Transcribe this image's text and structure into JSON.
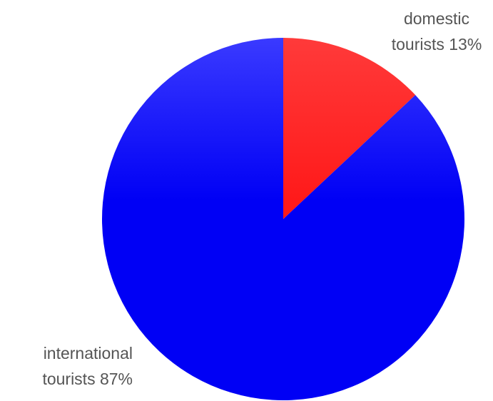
{
  "chart_data": {
    "type": "pie",
    "title": "",
    "slices": [
      {
        "name": "domestic tourists",
        "value": 13,
        "label_line1": "domestic",
        "label_line2": "tourists 13%",
        "color": "#ff1a1a",
        "color_light": "#ff3a3a"
      },
      {
        "name": "international tourists",
        "value": 87,
        "label_line1": "international",
        "label_line2": "tourists 87%",
        "color": "#0000f5",
        "color_light": "#3a3aff"
      }
    ],
    "start_angle": "12 o'clock",
    "direction": "clockwise",
    "legend": "none"
  }
}
